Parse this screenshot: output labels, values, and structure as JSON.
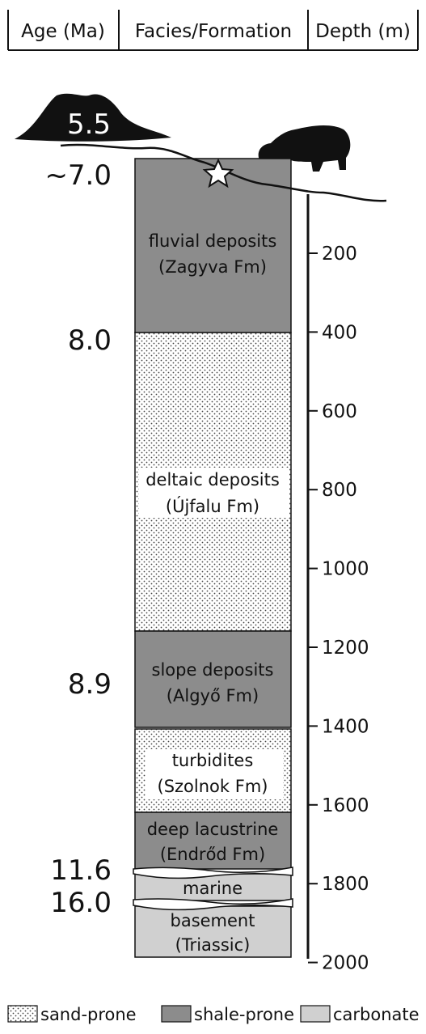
{
  "header": {
    "columns": [
      "Age (Ma)",
      "Facies/Formation",
      "Depth (m)"
    ]
  },
  "ages": [
    "5.5",
    "~7.0",
    "8.0",
    "8.9",
    "11.6",
    "16.0"
  ],
  "units": [
    {
      "name": "fluvial deposits",
      "formation": "(Zagyva Fm)"
    },
    {
      "name": "deltaic deposits",
      "formation": "(Újfalu Fm)"
    },
    {
      "name": "slope deposits",
      "formation": "(Algyő Fm)"
    },
    {
      "name": "turbidites",
      "formation": "(Szolnok Fm)"
    },
    {
      "name": "deep lacustrine",
      "formation": "(Endrőd Fm)"
    },
    {
      "name": "marine"
    },
    {
      "name": "basement",
      "formation": "(Triassic)"
    }
  ],
  "depth_ticks": [
    "200",
    "400",
    "600",
    "800",
    "1000",
    "1200",
    "1400",
    "1600",
    "1800",
    "2000"
  ],
  "legend": [
    "sand-prone",
    "shale-prone",
    "carbonate"
  ]
}
